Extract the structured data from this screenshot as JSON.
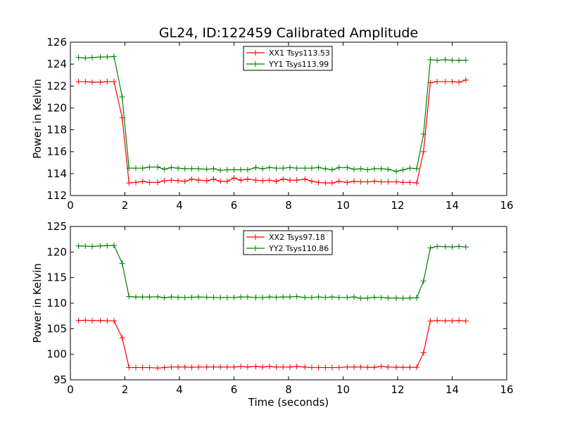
{
  "title": "GL24, ID:122459 Calibrated Amplitude",
  "chart_data": [
    {
      "type": "line",
      "xlabel": "",
      "ylabel": "Power in Kelvin",
      "xlim": [
        0,
        16
      ],
      "ylim": [
        112,
        126
      ],
      "xticks": [
        "0",
        "2",
        "4",
        "6",
        "8",
        "10",
        "12",
        "14",
        "16"
      ],
      "yticks": [
        "112",
        "114",
        "116",
        "118",
        "120",
        "122",
        "124",
        "126"
      ],
      "grid": false,
      "legend_position": "top-center",
      "x": [
        0.3,
        0.55,
        0.8,
        1.1,
        1.35,
        1.6,
        1.9,
        2.15,
        2.4,
        2.65,
        2.9,
        3.2,
        3.45,
        3.7,
        3.95,
        4.2,
        4.45,
        4.7,
        5.0,
        5.25,
        5.5,
        5.75,
        6.0,
        6.25,
        6.5,
        6.8,
        7.05,
        7.3,
        7.55,
        7.8,
        8.05,
        8.3,
        8.6,
        8.85,
        9.1,
        9.35,
        9.6,
        9.85,
        10.15,
        10.4,
        10.65,
        10.9,
        11.15,
        11.4,
        11.65,
        11.95,
        12.2,
        12.45,
        12.7,
        12.95,
        13.2,
        13.45,
        13.75,
        14.0,
        14.25,
        14.5
      ],
      "series": [
        {
          "name": "XX1 Tsys113.53",
          "color": "#ff0000",
          "values": [
            122.4,
            122.4,
            122.35,
            122.35,
            122.4,
            122.4,
            119.1,
            113.15,
            113.2,
            113.3,
            113.2,
            113.2,
            113.35,
            113.4,
            113.35,
            113.3,
            113.5,
            113.4,
            113.35,
            113.5,
            113.3,
            113.3,
            113.6,
            113.4,
            113.5,
            113.4,
            113.35,
            113.4,
            113.3,
            113.5,
            113.4,
            113.4,
            113.5,
            113.3,
            113.2,
            113.15,
            113.15,
            113.3,
            113.2,
            113.3,
            113.25,
            113.25,
            113.3,
            113.25,
            113.25,
            113.25,
            113.2,
            113.2,
            113.15,
            116.0,
            122.3,
            122.4,
            122.4,
            122.4,
            122.35,
            122.55
          ]
        },
        {
          "name": "YY1 Tsys113.99",
          "color": "#008000",
          "values": [
            124.6,
            124.55,
            124.6,
            124.65,
            124.65,
            124.7,
            121.0,
            114.5,
            114.5,
            114.5,
            114.6,
            114.6,
            114.4,
            114.55,
            114.5,
            114.45,
            114.45,
            114.45,
            114.4,
            114.45,
            114.3,
            114.35,
            114.35,
            114.35,
            114.35,
            114.55,
            114.45,
            114.55,
            114.5,
            114.5,
            114.55,
            114.5,
            114.5,
            114.5,
            114.55,
            114.45,
            114.35,
            114.55,
            114.55,
            114.4,
            114.45,
            114.35,
            114.45,
            114.45,
            114.4,
            114.2,
            114.35,
            114.5,
            114.45,
            117.6,
            124.4,
            124.35,
            124.4,
            124.35,
            124.35,
            124.35
          ]
        }
      ]
    },
    {
      "type": "line",
      "xlabel": "Time (seconds)",
      "ylabel": "Power in Kelvin",
      "xlim": [
        0,
        16
      ],
      "ylim": [
        95,
        125
      ],
      "xticks": [
        "0",
        "2",
        "4",
        "6",
        "8",
        "10",
        "12",
        "14",
        "16"
      ],
      "yticks": [
        "95",
        "100",
        "105",
        "110",
        "115",
        "120",
        "125"
      ],
      "grid": false,
      "legend_position": "top-center",
      "x": [
        0.3,
        0.55,
        0.8,
        1.1,
        1.35,
        1.6,
        1.9,
        2.15,
        2.4,
        2.65,
        2.9,
        3.2,
        3.45,
        3.7,
        3.95,
        4.2,
        4.45,
        4.7,
        5.0,
        5.25,
        5.5,
        5.75,
        6.0,
        6.25,
        6.5,
        6.8,
        7.05,
        7.3,
        7.55,
        7.8,
        8.05,
        8.3,
        8.6,
        8.85,
        9.1,
        9.35,
        9.6,
        9.85,
        10.15,
        10.4,
        10.65,
        10.9,
        11.15,
        11.4,
        11.65,
        11.95,
        12.2,
        12.45,
        12.7,
        12.95,
        13.2,
        13.45,
        13.75,
        14.0,
        14.25,
        14.5
      ],
      "series": [
        {
          "name": "XX2 Tsys97.18",
          "color": "#ff0000",
          "values": [
            106.6,
            106.65,
            106.6,
            106.6,
            106.55,
            106.55,
            103.2,
            97.4,
            97.4,
            97.4,
            97.4,
            97.3,
            97.4,
            97.5,
            97.5,
            97.5,
            97.45,
            97.5,
            97.5,
            97.5,
            97.5,
            97.5,
            97.5,
            97.6,
            97.5,
            97.6,
            97.5,
            97.6,
            97.5,
            97.5,
            97.5,
            97.6,
            97.5,
            97.4,
            97.4,
            97.4,
            97.4,
            97.4,
            97.5,
            97.5,
            97.5,
            97.45,
            97.45,
            97.6,
            97.5,
            97.45,
            97.45,
            97.45,
            97.45,
            100.3,
            106.5,
            106.6,
            106.55,
            106.55,
            106.6,
            106.5
          ]
        },
        {
          "name": "YY2 Tsys110.86",
          "color": "#008000",
          "values": [
            121.2,
            121.15,
            121.1,
            121.2,
            121.25,
            121.3,
            117.8,
            111.3,
            111.2,
            111.2,
            111.2,
            111.25,
            111.05,
            111.2,
            111.15,
            111.1,
            111.15,
            111.2,
            111.15,
            111.1,
            111.1,
            111.1,
            111.1,
            111.2,
            111.2,
            111.1,
            111.1,
            111.2,
            111.15,
            111.2,
            111.2,
            111.3,
            111.1,
            111.1,
            111.2,
            111.1,
            111.2,
            111.1,
            111.1,
            111.2,
            110.95,
            111.0,
            111.15,
            111.1,
            111.0,
            111.0,
            110.95,
            111.0,
            111.05,
            114.3,
            120.8,
            121.1,
            121.05,
            121.0,
            121.1,
            121.0
          ]
        }
      ]
    }
  ]
}
